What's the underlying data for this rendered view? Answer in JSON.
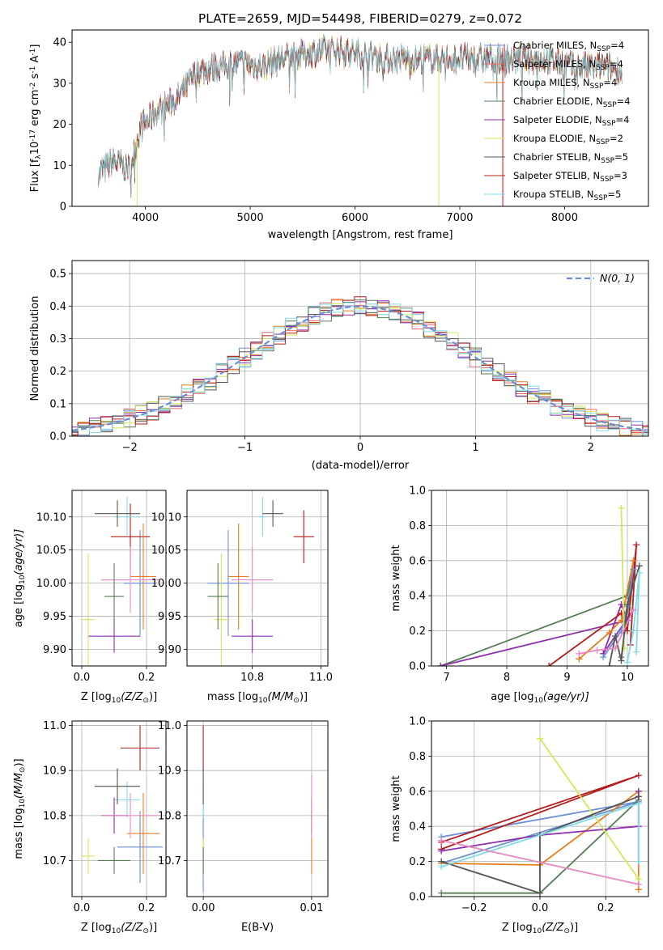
{
  "colors": [
    "#6a8ed6",
    "#ee6a6a",
    "#e77d1f",
    "#567d56",
    "#8e2ead",
    "#d4e85a",
    "#555555",
    "#b51d1d",
    "#7fdbe8",
    "#e88ac2"
  ],
  "chart_data": [
    {
      "type": "line",
      "title": "PLATE=2659, MJD=54498, FIBERID=0279, z=0.072",
      "xlabel": "wavelength [Angstrom, rest frame]",
      "ylabel": "Flux [f",
      "ylabel_sub": "λ",
      "ylabel_mid": "10",
      "ylabel_sup1": "-17",
      "ylabel_rest": " erg cm",
      "ylabel_sup2": "-2",
      "ylabel_rest2": " s",
      "ylabel_sup3": "-1",
      "ylabel_rest3": " A",
      "ylabel_sup4": "-1",
      "ylabel_end": "]",
      "xlim": [
        3300,
        8800
      ],
      "ylim": [
        0,
        43
      ],
      "xticks": [
        4000,
        5000,
        6000,
        7000,
        8000
      ],
      "yticks": [
        0,
        10,
        20,
        30,
        40
      ],
      "grid": false,
      "legend_position": "top-right",
      "legend": [
        {
          "name": "Chabrier MILES, N",
          "sub": "SSP",
          "val": "=4"
        },
        {
          "name": "Salpeter MILES, N",
          "sub": "SSP",
          "val": "=4"
        },
        {
          "name": "Kroupa MILES, N",
          "sub": "SSP",
          "val": "=4"
        },
        {
          "name": "Chabrier ELODIE, N",
          "sub": "SSP",
          "val": "=4"
        },
        {
          "name": "Salpeter ELODIE, N",
          "sub": "SSP",
          "val": "=4"
        },
        {
          "name": "Kroupa ELODIE, N",
          "sub": "SSP",
          "val": "=2"
        },
        {
          "name": "Chabrier STELIB, N",
          "sub": "SSP",
          "val": "=5"
        },
        {
          "name": "Salpeter STELIB, N",
          "sub": "SSP",
          "val": "=3"
        },
        {
          "name": "Kroupa STELIB, N",
          "sub": "SSP",
          "val": "=5"
        }
      ],
      "spectrum_envelope": [
        [
          3550,
          8
        ],
        [
          3700,
          11
        ],
        [
          3850,
          9
        ],
        [
          3950,
          19
        ],
        [
          4100,
          23
        ],
        [
          4300,
          26
        ],
        [
          4500,
          33
        ],
        [
          4700,
          34
        ],
        [
          4900,
          35
        ],
        [
          5100,
          34
        ],
        [
          5300,
          36
        ],
        [
          5500,
          37
        ],
        [
          5700,
          38
        ],
        [
          5900,
          38
        ],
        [
          6100,
          37
        ],
        [
          6300,
          36
        ],
        [
          6600,
          36
        ],
        [
          6900,
          36
        ],
        [
          7200,
          36
        ],
        [
          7500,
          36
        ],
        [
          7800,
          36
        ],
        [
          8100,
          34
        ],
        [
          8400,
          34
        ],
        [
          8550,
          33
        ]
      ],
      "spectrum_xrange": [
        3550,
        8550
      ],
      "spikes": [
        {
          "x": 3920,
          "y_low": 0,
          "color_index": 5
        },
        {
          "x": 6800,
          "y_low": 0,
          "color_index": 5
        },
        {
          "x": 7410,
          "y_low": 0,
          "color_index": 7
        }
      ]
    },
    {
      "type": "histogram",
      "xlabel": "(data-model)/error",
      "ylabel": "Normed distribution",
      "xlim": [
        -2.5,
        2.5
      ],
      "ylim": [
        0,
        0.54
      ],
      "xticks": [
        -2,
        -1,
        0,
        1,
        2
      ],
      "yticks": [
        0.0,
        0.1,
        0.2,
        0.3,
        0.4,
        0.5
      ],
      "grid": true,
      "legend_position": "top-right",
      "legend": [
        "N(0, 1)"
      ],
      "reference_curve": {
        "name": "N(0, 1)",
        "mean": 0,
        "sigma": 1,
        "style": "dashed",
        "color": "#6a8ed6"
      },
      "bin_width": 0.1,
      "hist_noise_amplitude": 0.03
    },
    {
      "type": "errorbar",
      "xlabel": "Z [log",
      "xlabel_sub": "10",
      "xlabel_rest": "(Z/Z",
      "xlabel_sub2": "⊙",
      "xlabel_end": ")]",
      "ylabel": "age  [log",
      "ylabel_sub": "10",
      "ylabel_rest": "(age/yr)]",
      "xlim": [
        -0.03,
        0.26
      ],
      "ylim": [
        9.875,
        10.14
      ],
      "xticks": [
        0.0,
        0.2
      ],
      "yticks": [
        9.9,
        9.95,
        10.0,
        10.05,
        10.1
      ],
      "points": [
        {
          "x": 0.18,
          "y": 10.0,
          "xerr": 0.05,
          "yerr": 0.08,
          "c": 0
        },
        {
          "x": 0.15,
          "y": 10.07,
          "xerr": 0.06,
          "yerr": 0.05,
          "c": 7
        },
        {
          "x": 0.19,
          "y": 10.01,
          "xerr": 0.04,
          "yerr": 0.08,
          "c": 2
        },
        {
          "x": 0.14,
          "y": 10.1,
          "xerr": 0.04,
          "yerr": 0.03,
          "c": 8
        },
        {
          "x": 0.1,
          "y": 9.92,
          "xerr": 0.08,
          "yerr": 0.025,
          "c": 4
        },
        {
          "x": 0.02,
          "y": 9.945,
          "xerr": 0.02,
          "yerr": 0.1,
          "c": 5
        },
        {
          "x": 0.11,
          "y": 10.105,
          "xerr": 0.07,
          "yerr": 0.02,
          "c": 6
        },
        {
          "x": 0.15,
          "y": 10.005,
          "xerr": 0.09,
          "yerr": 0.05,
          "c": 9
        },
        {
          "x": 0.1,
          "y": 9.98,
          "xerr": 0.03,
          "yerr": 0.05,
          "c": 3
        }
      ]
    },
    {
      "type": "errorbar",
      "xlabel": "mass [log",
      "xlabel_sub": "10",
      "xlabel_rest": "(M/M",
      "xlabel_sub2": "⊙",
      "xlabel_end": ")]",
      "ylabel": "",
      "xlim": [
        10.61,
        11.02
      ],
      "ylim": [
        9.875,
        10.14
      ],
      "xticks": [
        10.8,
        11.0
      ],
      "yticks": [
        9.9,
        9.95,
        10.0,
        10.05,
        10.1
      ],
      "points": [
        {
          "x": 10.73,
          "y": 10.0,
          "xerr": 0.06,
          "yerr": 0.08,
          "c": 0
        },
        {
          "x": 10.95,
          "y": 10.07,
          "xerr": 0.03,
          "yerr": 0.04,
          "c": 7
        },
        {
          "x": 10.76,
          "y": 10.01,
          "xerr": 0.03,
          "yerr": 0.08,
          "c": 2
        },
        {
          "x": 10.83,
          "y": 10.1,
          "xerr": 0.01,
          "yerr": 0.03,
          "c": 8
        },
        {
          "x": 10.8,
          "y": 9.92,
          "xerr": 0.06,
          "yerr": 0.025,
          "c": 4
        },
        {
          "x": 10.71,
          "y": 9.945,
          "xerr": 0.02,
          "yerr": 0.1,
          "c": 5
        },
        {
          "x": 10.86,
          "y": 10.105,
          "xerr": 0.03,
          "yerr": 0.02,
          "c": 6
        },
        {
          "x": 10.8,
          "y": 10.005,
          "xerr": 0.06,
          "yerr": 0.05,
          "c": 9
        },
        {
          "x": 10.7,
          "y": 9.98,
          "xerr": 0.03,
          "yerr": 0.05,
          "c": 3
        }
      ]
    },
    {
      "type": "line",
      "xlabel": "age  [log",
      "xlabel_sub": "10",
      "xlabel_rest": "(age/yr)]",
      "ylabel": "mass weight",
      "xlim": [
        6.75,
        10.35
      ],
      "ylim": [
        0,
        1.0
      ],
      "xticks": [
        7,
        8,
        9,
        10
      ],
      "yticks": [
        0.0,
        0.2,
        0.4,
        0.6,
        0.8,
        1.0
      ],
      "grid": true,
      "series": [
        {
          "c": 3,
          "x": [
            6.9,
            10.0,
            10.1,
            9.9
          ],
          "y": [
            0.0,
            0.4,
            0.55,
            0.05
          ]
        },
        {
          "c": 4,
          "x": [
            6.9,
            10.0,
            9.9,
            9.6,
            10.1
          ],
          "y": [
            0.0,
            0.26,
            0.35,
            0.07,
            0.32
          ]
        },
        {
          "c": 7,
          "x": [
            8.7,
            9.9,
            10.0,
            10.15,
            10.05
          ],
          "y": [
            0.0,
            0.3,
            0.2,
            0.69,
            0.12
          ]
        },
        {
          "c": 0,
          "x": [
            9.6,
            9.9,
            10.0,
            10.1
          ],
          "y": [
            0.05,
            0.2,
            0.34,
            0.55
          ]
        },
        {
          "c": 2,
          "x": [
            9.2,
            9.7,
            9.9,
            10.1
          ],
          "y": [
            0.04,
            0.19,
            0.26,
            0.6
          ]
        },
        {
          "c": 5,
          "x": [
            9.9,
            9.95
          ],
          "y": [
            0.9,
            0.1
          ]
        },
        {
          "c": 6,
          "x": [
            9.7,
            9.8,
            9.9,
            10.0,
            10.2
          ],
          "y": [
            0.0,
            0.17,
            0.03,
            0.35,
            0.57
          ]
        },
        {
          "c": 8,
          "x": [
            10.0,
            10.1,
            10.2,
            10.15
          ],
          "y": [
            0.02,
            0.2,
            0.53,
            0.08
          ]
        },
        {
          "c": 9,
          "x": [
            9.2,
            9.5,
            9.8,
            10.1
          ],
          "y": [
            0.07,
            0.09,
            0.1,
            0.32
          ]
        }
      ]
    },
    {
      "type": "errorbar",
      "xlabel": "Z [log",
      "xlabel_sub": "10",
      "xlabel_rest": "(Z/Z",
      "xlabel_sub2": "⊙",
      "xlabel_end": ")]",
      "ylabel": "mass [log",
      "ylabel_sub": "10",
      "ylabel_rest": "(M/M",
      "ylabel_sub2": "⊙",
      "ylabel_end": ")]",
      "xlim": [
        -0.03,
        0.26
      ],
      "ylim": [
        10.62,
        11.01
      ],
      "xticks": [
        0.0,
        0.2
      ],
      "yticks": [
        10.7,
        10.8,
        10.9,
        11.0
      ],
      "points": [
        {
          "x": 0.18,
          "y": 10.73,
          "xerr": 0.07,
          "yerr": 0.08,
          "c": 0
        },
        {
          "x": 0.18,
          "y": 10.95,
          "xerr": 0.06,
          "yerr": 0.05,
          "c": 7
        },
        {
          "x": 0.19,
          "y": 10.76,
          "xerr": 0.05,
          "yerr": 0.09,
          "c": 2
        },
        {
          "x": 0.14,
          "y": 10.835,
          "xerr": 0.04,
          "yerr": 0.04,
          "c": 8
        },
        {
          "x": 0.1,
          "y": 10.8,
          "xerr": 0.04,
          "yerr": 0.04,
          "c": 4
        },
        {
          "x": 0.02,
          "y": 10.71,
          "xerr": 0.02,
          "yerr": 0.04,
          "c": 5
        },
        {
          "x": 0.11,
          "y": 10.865,
          "xerr": 0.07,
          "yerr": 0.04,
          "c": 6
        },
        {
          "x": 0.15,
          "y": 10.8,
          "xerr": 0.09,
          "yerr": 0.05,
          "c": 9
        },
        {
          "x": 0.1,
          "y": 10.7,
          "xerr": 0.05,
          "yerr": 0.03,
          "c": 3
        }
      ]
    },
    {
      "type": "errorbar",
      "xlabel": "E(B-V)",
      "ylabel": "",
      "xlim": [
        -0.0015,
        0.0115
      ],
      "ylim": [
        10.62,
        11.01
      ],
      "xticks": [
        0.0,
        0.01
      ],
      "yticks": [
        10.7,
        10.8,
        10.9,
        11.0
      ],
      "points": [
        {
          "x": 0.0,
          "y": 10.73,
          "xerr": 0,
          "yerr": 0.1,
          "c": 0
        },
        {
          "x": 0.0,
          "y": 10.95,
          "xerr": 0,
          "yerr": 0.05,
          "c": 7
        },
        {
          "x": 0.01,
          "y": 10.74,
          "xerr": 0,
          "yerr": 0.07,
          "c": 2
        },
        {
          "x": 0.0,
          "y": 10.835,
          "xerr": 0,
          "yerr": 0.04,
          "c": 8
        },
        {
          "x": 0.01,
          "y": 10.8,
          "xerr": 0,
          "yerr": 0.04,
          "c": 4
        },
        {
          "x": 0.0,
          "y": 10.71,
          "xerr": 0,
          "yerr": 0.04,
          "c": 5
        },
        {
          "x": 0.0,
          "y": 10.865,
          "xerr": 0,
          "yerr": 0.04,
          "c": 6
        },
        {
          "x": 0.01,
          "y": 10.82,
          "xerr": 0,
          "yerr": 0.07,
          "c": 9
        },
        {
          "x": 0.0,
          "y": 10.7,
          "xerr": 0,
          "yerr": 0.03,
          "c": 3
        }
      ]
    },
    {
      "type": "line",
      "xlabel": "Z [log",
      "xlabel_sub": "10",
      "xlabel_rest": "(Z/Z",
      "xlabel_sub2": "⊙",
      "xlabel_end": ")]",
      "ylabel": "mass weight",
      "xlim": [
        -0.33,
        0.33
      ],
      "ylim": [
        0,
        1.0
      ],
      "xticks": [
        -0.2,
        0.0,
        0.2
      ],
      "yticks": [
        0.0,
        0.2,
        0.4,
        0.6,
        0.8,
        1.0
      ],
      "grid": true,
      "series": [
        {
          "c": 0,
          "x": [
            -0.3,
            0.3,
            -0.3
          ],
          "y": [
            0.34,
            0.54,
            0.19
          ]
        },
        {
          "c": 7,
          "x": [
            -0.3,
            0.3,
            -0.3
          ],
          "y": [
            0.31,
            0.69,
            0.27
          ]
        },
        {
          "c": 2,
          "x": [
            -0.3,
            0.0,
            0.3,
            0.3
          ],
          "y": [
            0.19,
            0.18,
            0.6,
            0.04
          ]
        },
        {
          "c": 3,
          "x": [
            -0.3,
            0.0,
            0.3
          ],
          "y": [
            0.02,
            0.02,
            0.55
          ]
        },
        {
          "c": 4,
          "x": [
            -0.3,
            0.0,
            0.3,
            0.3
          ],
          "y": [
            0.26,
            0.35,
            0.4,
            0.6
          ]
        },
        {
          "c": 5,
          "x": [
            0.0,
            0.3
          ],
          "y": [
            0.9,
            0.1
          ]
        },
        {
          "c": 6,
          "x": [
            -0.3,
            0.0,
            0.0,
            0.3
          ],
          "y": [
            0.2,
            0.02,
            0.35,
            0.57
          ]
        },
        {
          "c": 8,
          "x": [
            -0.3,
            0.3,
            0.3
          ],
          "y": [
            0.17,
            0.53,
            0.2
          ]
        },
        {
          "c": 9,
          "x": [
            -0.3,
            0.3
          ],
          "y": [
            0.32,
            0.07
          ]
        }
      ]
    }
  ]
}
